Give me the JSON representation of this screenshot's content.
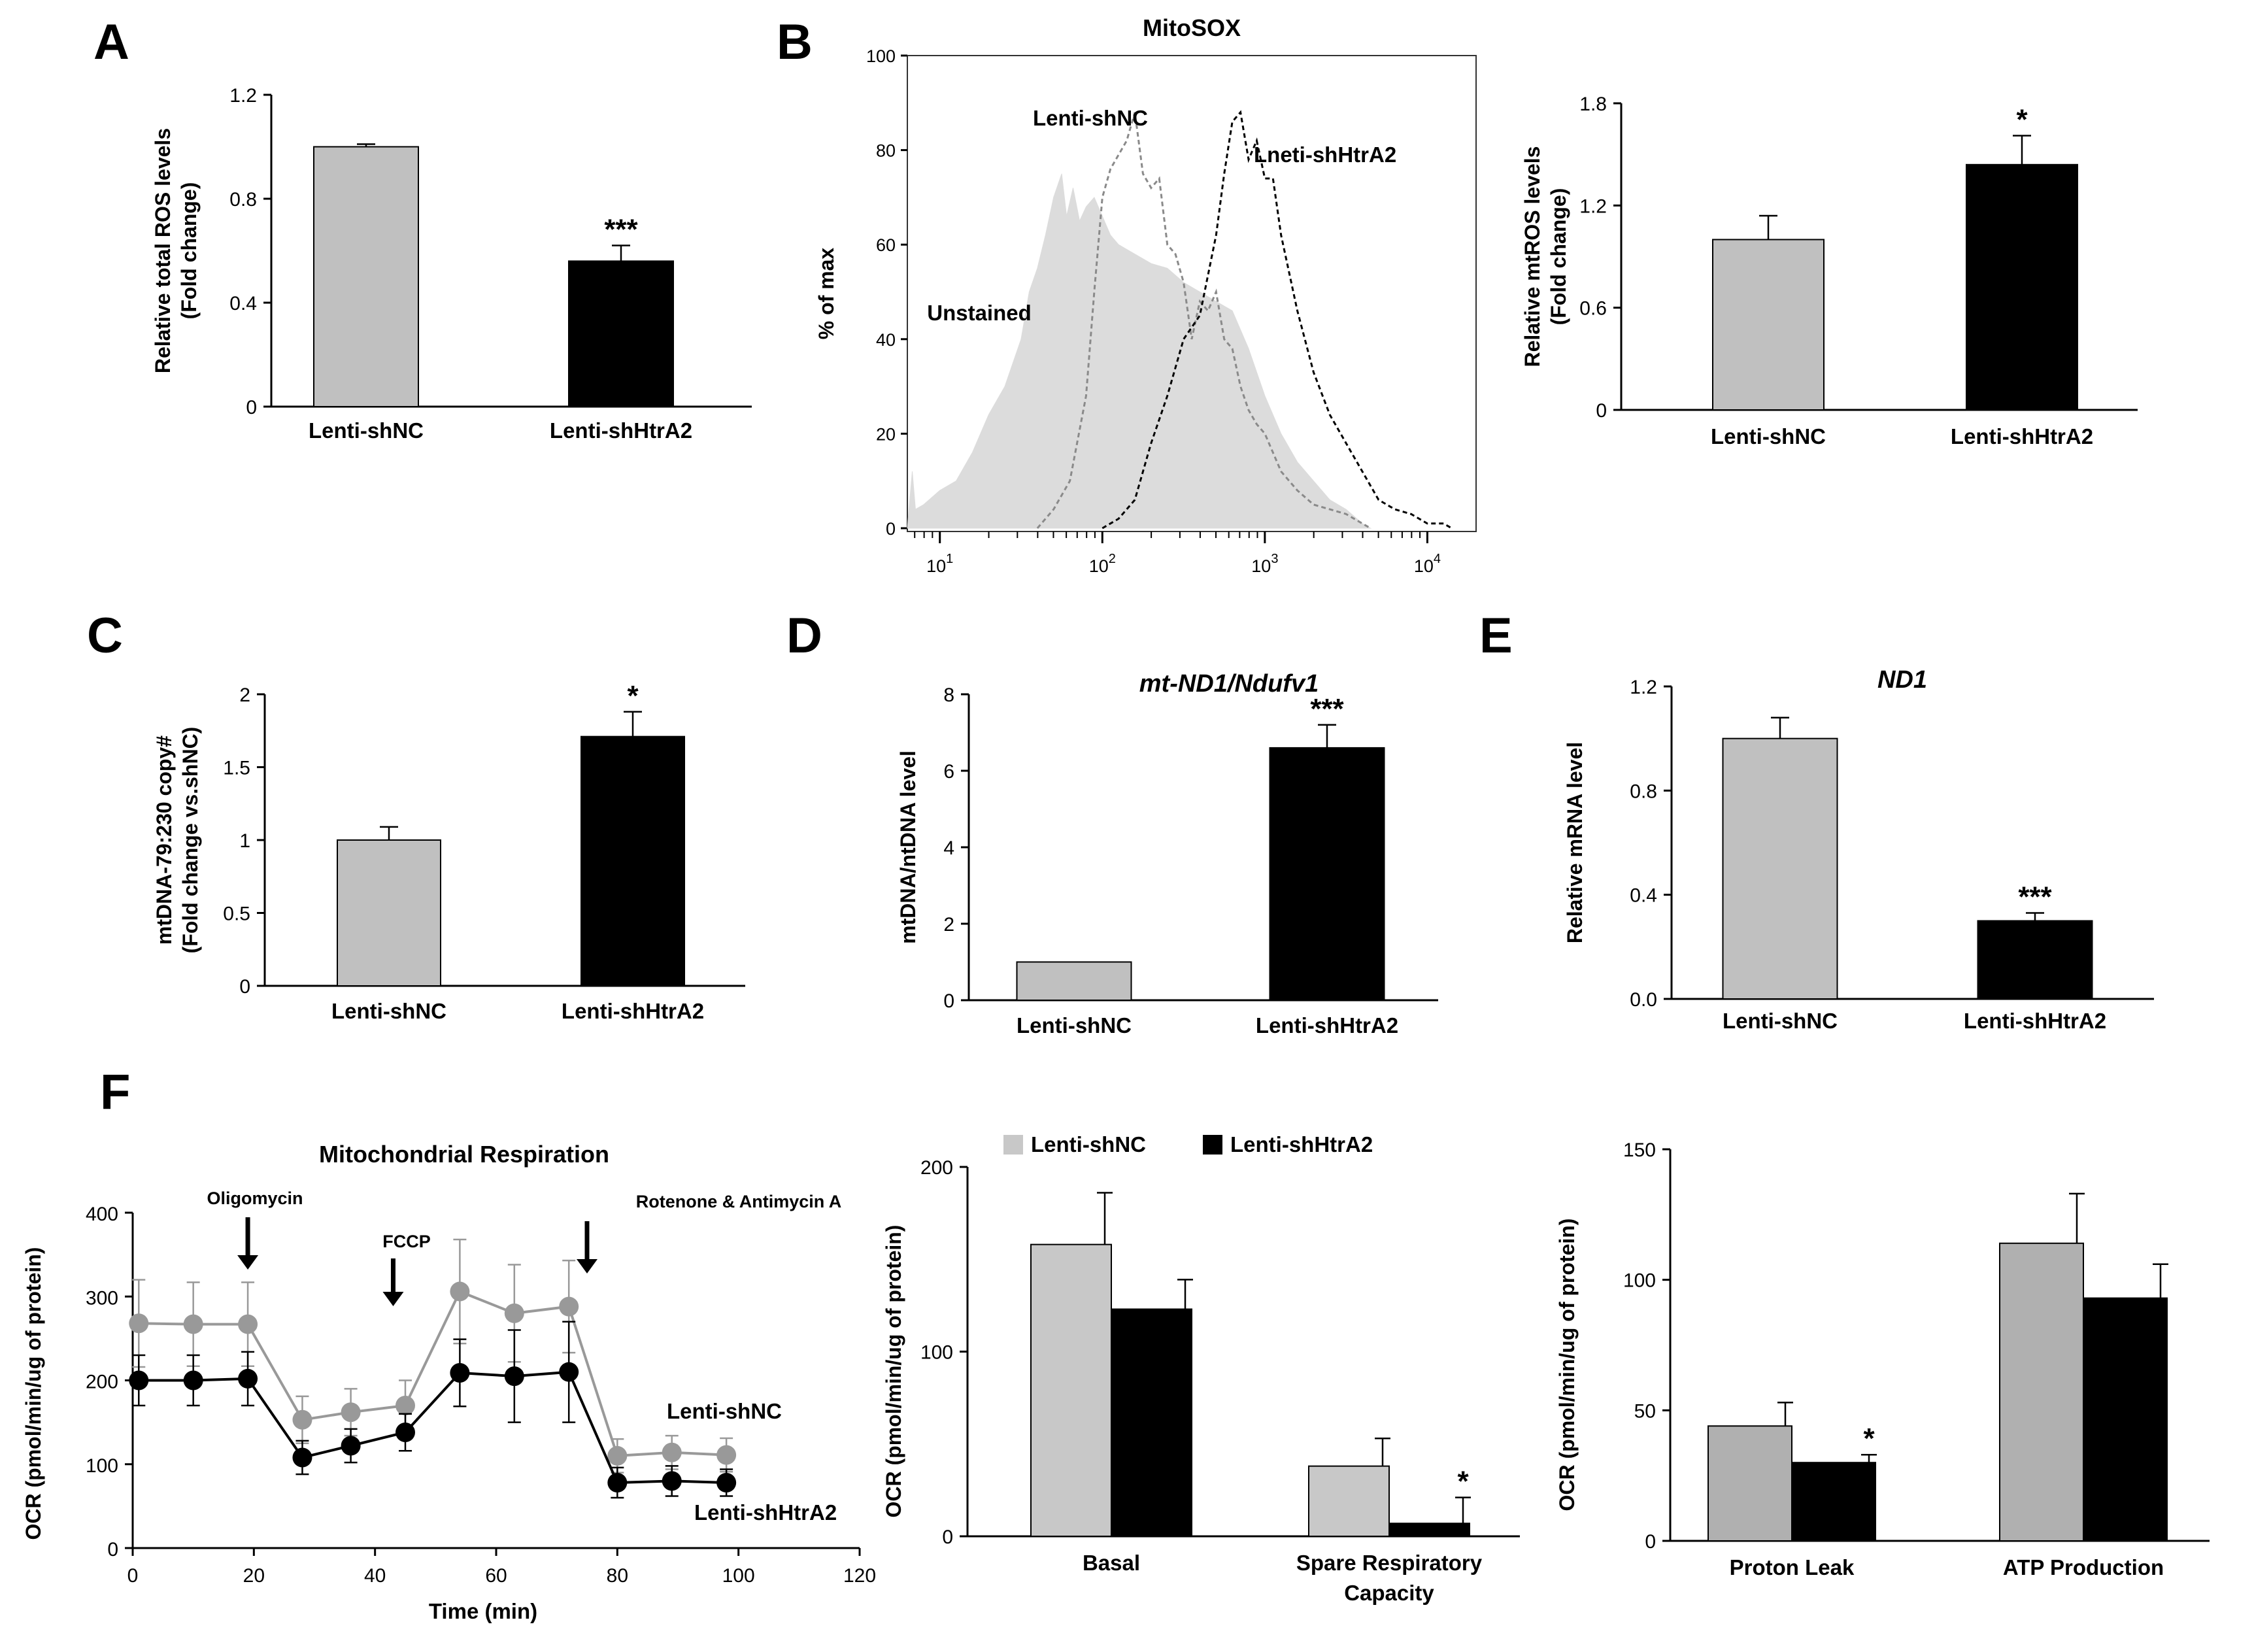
{
  "chart_data": [
    {
      "panel": "A",
      "type": "bar",
      "categories": [
        "Lenti-shNC",
        "Lenti-shHtrA2"
      ],
      "values": [
        1.0,
        0.56
      ],
      "errors": [
        0.01,
        0.06
      ],
      "colors": [
        "#c0c0c0",
        "#000000"
      ],
      "significance": [
        "",
        "***"
      ],
      "ylabel_lines": [
        "Relative total ROS levels",
        "(Fold change)"
      ],
      "ylim": [
        0,
        1.2
      ],
      "yticks": [
        "0",
        "0.4",
        "0.8",
        "1.2"
      ]
    },
    {
      "panel": "B",
      "type": "histogram",
      "title": "MitoSOX",
      "ylabel": "% of max",
      "ylim": [
        0,
        100
      ],
      "yticks": [
        "0",
        "20",
        "40",
        "60",
        "80",
        "100"
      ],
      "xscale": "log",
      "xlim_log10": [
        0.8,
        4.3
      ],
      "xticks": [
        {
          "base": "10",
          "exp": "1"
        },
        {
          "base": "10",
          "exp": "2"
        },
        {
          "base": "10",
          "exp": "3"
        },
        {
          "base": "10",
          "exp": "4"
        }
      ],
      "series": [
        {
          "name": "Unstained",
          "style": "filled",
          "x": [
            0.8,
            0.83,
            0.85,
            0.9,
            1.0,
            1.1,
            1.2,
            1.3,
            1.4,
            1.5,
            1.55,
            1.6,
            1.65,
            1.7,
            1.75,
            1.78,
            1.82,
            1.86,
            1.9,
            1.95,
            2.0,
            2.05,
            2.1,
            2.2,
            2.3,
            2.4,
            2.5,
            2.6,
            2.7,
            2.8,
            2.9,
            3.0,
            3.1,
            3.2,
            3.3,
            3.4,
            3.5,
            3.6,
            3.65
          ],
          "y": [
            0,
            12,
            4,
            5,
            8,
            10,
            16,
            24,
            30,
            40,
            50,
            55,
            62,
            70,
            75,
            66,
            72,
            65,
            68,
            70,
            66,
            62,
            60,
            58,
            56,
            55,
            52,
            50,
            48,
            46,
            38,
            28,
            20,
            14,
            10,
            6,
            4,
            1,
            0
          ]
        },
        {
          "name": "Lenti-shNC",
          "style": "grey-dashed",
          "x": [
            1.6,
            1.7,
            1.8,
            1.9,
            1.95,
            2.0,
            2.05,
            2.1,
            2.15,
            2.2,
            2.25,
            2.3,
            2.35,
            2.4,
            2.45,
            2.5,
            2.55,
            2.6,
            2.65,
            2.7,
            2.75,
            2.8,
            2.85,
            2.9,
            2.95,
            3.0,
            3.1,
            3.2,
            3.3,
            3.4,
            3.5,
            3.6,
            3.65
          ],
          "y": [
            0,
            4,
            10,
            28,
            50,
            70,
            76,
            79,
            82,
            88,
            75,
            72,
            74,
            60,
            58,
            52,
            40,
            48,
            46,
            50,
            40,
            38,
            30,
            25,
            22,
            20,
            12,
            8,
            5,
            4,
            3,
            1,
            0
          ]
        },
        {
          "name": "Lneti-shHtrA2",
          "style": "black-dashed",
          "x": [
            2.0,
            2.1,
            2.2,
            2.3,
            2.4,
            2.5,
            2.6,
            2.7,
            2.75,
            2.8,
            2.85,
            2.9,
            2.95,
            3.0,
            3.05,
            3.1,
            3.2,
            3.3,
            3.4,
            3.5,
            3.6,
            3.7,
            3.8,
            3.9,
            4.0,
            4.1,
            4.15
          ],
          "y": [
            0,
            2,
            6,
            18,
            28,
            40,
            45,
            62,
            75,
            86,
            88,
            78,
            82,
            74,
            74,
            62,
            46,
            33,
            24,
            18,
            12,
            6,
            4,
            3,
            1,
            1,
            0
          ]
        }
      ],
      "labels": [
        "Lenti-shNC",
        "Lneti-shHtrA2",
        "Unstained"
      ]
    },
    {
      "panel": "B2",
      "type": "bar",
      "categories": [
        "Lenti-shNC",
        "Lenti-shHtrA2"
      ],
      "values": [
        1.0,
        1.44
      ],
      "errors": [
        0.14,
        0.17
      ],
      "colors": [
        "#c0c0c0",
        "#000000"
      ],
      "significance": [
        "",
        "*"
      ],
      "ylabel_lines": [
        "Relative mtROS levels",
        "(Fold change)"
      ],
      "ylim": [
        0,
        1.8
      ],
      "yticks": [
        "0",
        "0.6",
        "1.2",
        "1.8"
      ]
    },
    {
      "panel": "C",
      "type": "bar",
      "categories": [
        "Lenti-shNC",
        "Lenti-shHtrA2"
      ],
      "values": [
        1.0,
        1.71
      ],
      "errors": [
        0.09,
        0.17
      ],
      "colors": [
        "#c0c0c0",
        "#000000"
      ],
      "significance": [
        "",
        "*"
      ],
      "ylabel_lines": [
        "mtDNA-79:230 copy#",
        "(Fold change vs.shNC)"
      ],
      "ylim": [
        0,
        2
      ],
      "yticks": [
        "0",
        "0.5",
        "1",
        "1.5",
        "2"
      ]
    },
    {
      "panel": "D",
      "type": "bar",
      "title": "mt-ND1/Ndufv1",
      "categories": [
        "Lenti-shNC",
        "Lenti-shHtrA2"
      ],
      "values": [
        1.0,
        6.6
      ],
      "errors": [
        0.0,
        0.6
      ],
      "colors": [
        "#c0c0c0",
        "#000000"
      ],
      "significance": [
        "",
        "***"
      ],
      "ylabel_lines": [
        "mtDNA/ntDNA level"
      ],
      "ylim": [
        0,
        8
      ],
      "yticks": [
        "0",
        "2",
        "4",
        "6",
        "8"
      ]
    },
    {
      "panel": "E",
      "type": "bar",
      "title": "ND1",
      "categories": [
        "Lenti-shNC",
        "Lenti-shHtrA2"
      ],
      "values": [
        1.0,
        0.3
      ],
      "errors": [
        0.08,
        0.03
      ],
      "colors": [
        "#c0c0c0",
        "#000000"
      ],
      "significance": [
        "",
        "***"
      ],
      "ylabel_lines": [
        "Relative mRNA level"
      ],
      "ylim": [
        0,
        1.2
      ],
      "yticks": [
        "0.0",
        "0.4",
        "0.8",
        "1.2"
      ]
    },
    {
      "panel": "F1",
      "type": "line",
      "title": "Mitochondrial  Respiration",
      "xlabel": "Time (min)",
      "ylabel": "OCR (pmol/min/ug of protein)",
      "xlim": [
        0,
        120
      ],
      "ylim": [
        0,
        400
      ],
      "xticks": [
        "0",
        "20",
        "40",
        "60",
        "80",
        "100",
        "120"
      ],
      "yticks": [
        "0",
        "100",
        "200",
        "300",
        "400"
      ],
      "x": [
        1,
        10,
        19,
        28,
        36,
        45,
        54,
        63,
        72,
        80,
        89,
        98
      ],
      "series": [
        {
          "name": "Lenti-shNC",
          "color": "#999999",
          "values": [
            268,
            267,
            267,
            153,
            162,
            170,
            306,
            280,
            288,
            110,
            114,
            111
          ],
          "errors": [
            52,
            50,
            50,
            28,
            28,
            30,
            62,
            58,
            55,
            20,
            20,
            20
          ]
        },
        {
          "name": "Lenti-shHtrA2",
          "color": "#000000",
          "values": [
            200,
            200,
            202,
            108,
            122,
            138,
            209,
            205,
            210,
            78,
            80,
            78
          ],
          "errors": [
            30,
            30,
            32,
            20,
            20,
            22,
            40,
            55,
            60,
            18,
            18,
            16
          ]
        }
      ],
      "annotations": [
        {
          "text": "Oligomycin",
          "x": 19
        },
        {
          "text": "FCCP",
          "x": 43
        },
        {
          "text": "Rotenone & Antimycin A",
          "x": 75
        }
      ]
    },
    {
      "panel": "F2",
      "type": "bar",
      "ylabel": "OCR (pmol/min/ug of protein)",
      "categories": [
        [
          "Basal"
        ],
        [
          "Spare Respiratory",
          "Capacity"
        ]
      ],
      "ylim": [
        0,
        200
      ],
      "yticks": [
        "0",
        "100",
        "200"
      ],
      "series": [
        {
          "name": "Lenti-shNC",
          "color": "#c8c8c8",
          "values": [
            158,
            38
          ],
          "errors": [
            28,
            15
          ]
        },
        {
          "name": "Lenti-shHtrA2",
          "color": "#000000",
          "values": [
            123,
            7
          ],
          "errors": [
            16,
            14
          ]
        }
      ],
      "significance": [
        [
          "",
          ""
        ],
        [
          "",
          "*"
        ]
      ],
      "legend": [
        "Lenti-shNC",
        "Lenti-shHtrA2"
      ]
    },
    {
      "panel": "F3",
      "type": "bar",
      "ylabel": "OCR (pmol/min/ug of protein)",
      "categories": [
        [
          "Proton Leak"
        ],
        [
          "ATP Production"
        ]
      ],
      "ylim": [
        0,
        150
      ],
      "yticks": [
        "0",
        "50",
        "100",
        "150"
      ],
      "series": [
        {
          "name": "Lenti-shNC",
          "color": "#b0b0b0",
          "values": [
            44,
            114
          ],
          "errors": [
            9,
            19
          ]
        },
        {
          "name": "Lenti-shHtrA2",
          "color": "#000000",
          "values": [
            30,
            93
          ],
          "errors": [
            3,
            13
          ]
        }
      ],
      "significance": [
        [
          "",
          "*"
        ],
        [
          "",
          ""
        ]
      ]
    }
  ],
  "panel_letters": [
    "A",
    "B",
    "C",
    "D",
    "E",
    "F"
  ]
}
